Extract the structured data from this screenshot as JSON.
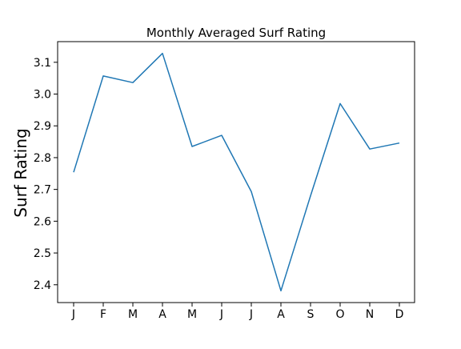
{
  "chart_data": {
    "type": "line",
    "title": "Monthly Averaged Surf Rating",
    "xlabel": "",
    "ylabel": "Surf Rating",
    "categories": [
      "J",
      "F",
      "M",
      "A",
      "M",
      "J",
      "J",
      "A",
      "S",
      "O",
      "N",
      "D"
    ],
    "series": [
      {
        "color": "#1f77b4",
        "values": [
          2.754,
          3.057,
          3.036,
          3.128,
          2.835,
          2.87,
          2.693,
          2.381,
          2.68,
          2.97,
          2.827,
          2.846
        ]
      }
    ],
    "yticks": [
      2.4,
      2.5,
      2.6,
      2.7,
      2.8,
      2.9,
      3.0,
      3.1
    ],
    "ytick_labels": [
      "2.4",
      "2.5",
      "2.6",
      "2.7",
      "2.8",
      "2.9",
      "3.0",
      "3.1"
    ],
    "ylim": [
      2.344,
      3.165
    ],
    "grid": false,
    "legend": false
  }
}
